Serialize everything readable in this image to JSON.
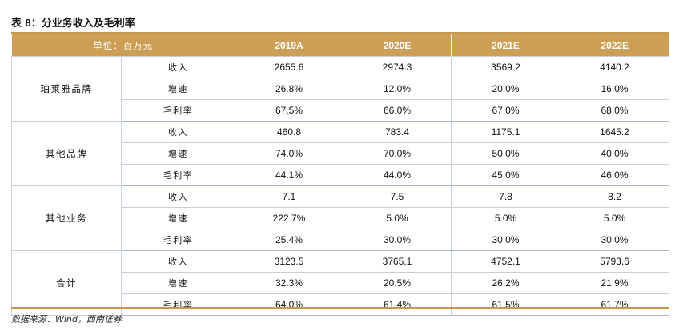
{
  "title": {
    "prefix": "表",
    "number": "8",
    "text": "：分业务收入及毛利率"
  },
  "header": {
    "unit_label": "单位：百万元",
    "years": [
      "2019A",
      "2020E",
      "2021E",
      "2022E"
    ]
  },
  "metrics": [
    "收入",
    "增速",
    "毛利率"
  ],
  "segments": [
    {
      "name": "珀莱雅品牌",
      "rows": [
        [
          "2655.6",
          "2974.3",
          "3569.2",
          "4140.2"
        ],
        [
          "26.8%",
          "12.0%",
          "20.0%",
          "16.0%"
        ],
        [
          "67.5%",
          "66.0%",
          "67.0%",
          "68.0%"
        ]
      ]
    },
    {
      "name": "其他品牌",
      "rows": [
        [
          "460.8",
          "783.4",
          "1175.1",
          "1645.2"
        ],
        [
          "74.0%",
          "70.0%",
          "50.0%",
          "40.0%"
        ],
        [
          "44.1%",
          "44.0%",
          "45.0%",
          "46.0%"
        ]
      ]
    },
    {
      "name": "其他业务",
      "rows": [
        [
          "7.1",
          "7.5",
          "7.8",
          "8.2"
        ],
        [
          "222.7%",
          "5.0%",
          "5.0%",
          "5.0%"
        ],
        [
          "25.4%",
          "30.0%",
          "30.0%",
          "30.0%"
        ]
      ]
    },
    {
      "name": "合计",
      "rows": [
        [
          "3123.5",
          "3765.1",
          "4752.1",
          "5793.6"
        ],
        [
          "32.3%",
          "20.5%",
          "26.2%",
          "21.9%"
        ],
        [
          "64.0%",
          "61.4%",
          "61.5%",
          "61.7%"
        ]
      ]
    }
  ],
  "source": "数据来源：Wind，西南证券",
  "colors": {
    "header_bg": "#cd9e55",
    "rule": "#c9984f",
    "grid": "#c7cfd9"
  }
}
